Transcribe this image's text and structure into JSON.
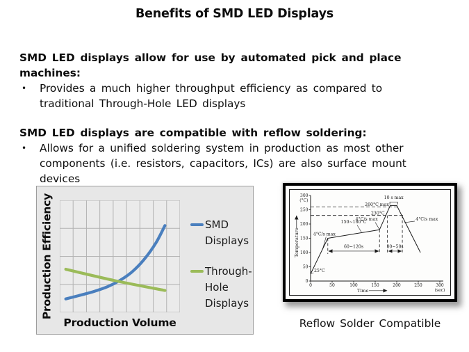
{
  "slide": {
    "title": "Benefits of SMD LED Displays",
    "bullet_char": "•",
    "sections": [
      {
        "heading_lines": [
          "SMD LED displays allow for use by automated pick and place",
          "machines:"
        ],
        "bullets": [
          {
            "lines": [
              "Provides a much higher throughput efficiency as compared to",
              "traditional Through-Hole LED displays"
            ]
          }
        ]
      },
      {
        "heading_lines": [
          "SMD LED displays are compatible with reflow soldering:"
        ],
        "bullets": [
          {
            "lines": [
              "Allows for a unified soldering system in production as most other",
              "components (i.e. resistors, capacitors, ICs) are also surface mount",
              "devices"
            ]
          }
        ]
      }
    ],
    "caption": "Reflow Solder Compatible"
  },
  "chart_data": [
    {
      "id": "production-efficiency-chart",
      "type": "line",
      "title": "",
      "xlabel": "Production Volume",
      "ylabel": "Production Efficiency",
      "grid": true,
      "x_tick_labels": "none",
      "y_tick_labels": "none",
      "legend_position": "right",
      "panel_bg": "#e7e7e7",
      "plot_bg": "#ebebeb",
      "grid_color": "#b2b2b2",
      "series": [
        {
          "name": "SMD Displays",
          "label_lines": [
            "SMD",
            "Displays"
          ],
          "color": "#4a7fbe",
          "trend": "exponential increase",
          "points_norm": [
            [
              0.05,
              0.12
            ],
            [
              0.16,
              0.15
            ],
            [
              0.28,
              0.185
            ],
            [
              0.4,
              0.23
            ],
            [
              0.5,
              0.285
            ],
            [
              0.6,
              0.36
            ],
            [
              0.7,
              0.47
            ],
            [
              0.8,
              0.62
            ],
            [
              0.875,
              0.775
            ]
          ]
        },
        {
          "name": "Through-Hole Displays",
          "label_lines": [
            "Through-",
            "Hole",
            "Displays"
          ],
          "color": "#9bbb59",
          "trend": "gradual decline",
          "points_norm": [
            [
              0.05,
              0.385
            ],
            [
              0.45,
              0.285
            ],
            [
              0.875,
              0.195
            ]
          ]
        }
      ]
    },
    {
      "id": "reflow-solder-profile",
      "type": "line",
      "xlabel": "Time",
      "x_unit": "(sec)",
      "ylabel": "Temperature",
      "y_unit": "(°C)",
      "x_ticks": [
        0,
        50,
        100,
        150,
        200,
        250,
        300
      ],
      "y_ticks": [
        0,
        50,
        100,
        150,
        200,
        250,
        300
      ],
      "line_color": "#1a1a1a",
      "profile_points": [
        [
          0,
          25
        ],
        [
          40,
          150
        ],
        [
          160,
          180
        ],
        [
          185,
          265
        ],
        [
          200,
          265
        ],
        [
          255,
          100
        ]
      ],
      "dashed_h_lines": [
        {
          "temp": 260,
          "t_end": 205
        },
        {
          "temp": 230,
          "t_end": 215
        }
      ],
      "dashed_v_lines": [
        {
          "t": 40,
          "temp_from": 150,
          "temp_to": 95
        },
        {
          "t": 160,
          "temp_from": 180,
          "temp_to": 95
        },
        {
          "t": 178,
          "temp_from": 230,
          "temp_to": 95
        },
        {
          "t": 213,
          "temp_from": 230,
          "temp_to": 95
        }
      ],
      "annotations": [
        {
          "text": "10 s max",
          "t": 193,
          "temp": 288,
          "anchor": "middle"
        },
        {
          "text": "260°C max",
          "t": 182,
          "temp": 263,
          "anchor": "end"
        },
        {
          "text": "230°C",
          "t": 172,
          "temp": 233,
          "anchor": "end"
        },
        {
          "text": "4°C/s max",
          "t": 32,
          "temp": 160,
          "anchor": "middle",
          "leader": [
            [
              36,
              155
            ],
            [
              28,
              112
            ]
          ]
        },
        {
          "text": "150~180°C",
          "t": 100,
          "temp": 202,
          "anchor": "middle",
          "leader": [
            [
              108,
              196
            ],
            [
              118,
              172
            ]
          ]
        },
        {
          "text": "4°C/s max",
          "t": 156,
          "temp": 212,
          "anchor": "end",
          "leader": [
            [
              150,
              206
            ],
            [
              160,
              181
            ]
          ]
        },
        {
          "text": "4°C/s max",
          "t": 244,
          "temp": 212,
          "anchor": "start",
          "leader": [
            [
              242,
              210
            ],
            [
              218,
              205
            ]
          ]
        },
        {
          "text": "60~120s",
          "t": 100,
          "temp": 116,
          "anchor": "middle"
        },
        {
          "text": "30~50s",
          "t": 196,
          "temp": 116,
          "anchor": "middle"
        },
        {
          "text": "25°C",
          "t": 8,
          "temp": 32,
          "anchor": "start",
          "leader": [
            [
              7,
              29
            ],
            [
              1,
              26
            ]
          ]
        }
      ],
      "range_arrows": [
        {
          "t1": 42,
          "t2": 158,
          "temp": 105
        },
        {
          "t1": 181,
          "t2": 211,
          "temp": 105
        }
      ],
      "peak_bracket": {
        "t1": 184,
        "t2": 202,
        "temp": 277
      }
    }
  ]
}
